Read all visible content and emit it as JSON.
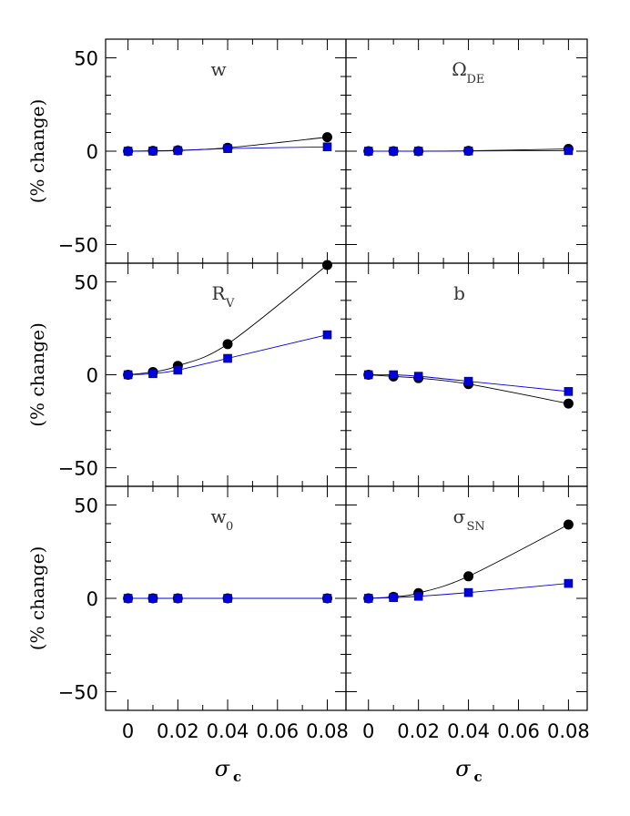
{
  "chart_data": {
    "type": "line",
    "layout": "3x2 grid, shared axes",
    "ylabel": "(% change)",
    "xlabel": "σ",
    "xlabel_sub": "c",
    "xlim": [
      -0.009,
      0.0875
    ],
    "ylim": [
      -60,
      60
    ],
    "xticks_major": [
      0,
      0.02,
      0.04,
      0.06,
      0.08
    ],
    "xtick_labels": [
      "0",
      "0.02",
      "0.04",
      "0.06",
      "0.08"
    ],
    "xticks_minor": [
      0.01,
      0.03,
      0.05,
      0.07
    ],
    "yticks_major": [
      -50,
      0,
      50
    ],
    "ytick_labels": [
      "−50",
      "0",
      "50"
    ],
    "yticks_minor": [
      -40,
      -30,
      -20,
      -10,
      10,
      20,
      30,
      40
    ],
    "x": [
      0,
      0.01,
      0.02,
      0.04,
      0.08
    ],
    "series_styles": [
      {
        "marker": "circle",
        "color": "#000000"
      },
      {
        "marker": "square",
        "color": "#0000dd"
      }
    ],
    "panels": [
      {
        "label": "w",
        "sub": "",
        "series": [
          {
            "values": [
              0,
              0.2,
              0.5,
              1.8,
              7.5
            ]
          },
          {
            "values": [
              0,
              0.1,
              0.3,
              1.4,
              2.3
            ]
          }
        ]
      },
      {
        "label": "Ω",
        "sub": "DE",
        "series": [
          {
            "values": [
              0,
              0,
              0,
              0.2,
              1.2
            ]
          },
          {
            "values": [
              0,
              0,
              0,
              0.1,
              0.3
            ]
          }
        ]
      },
      {
        "label": "R",
        "sub": "V",
        "series": [
          {
            "values": [
              0,
              1.5,
              4.8,
              16.5,
              59
            ]
          },
          {
            "values": [
              0,
              0.6,
              2.5,
              8.8,
              21.5
            ]
          }
        ]
      },
      {
        "label": "b",
        "sub": "",
        "series": [
          {
            "values": [
              0,
              -0.9,
              -1.8,
              -5,
              -15.5
            ]
          },
          {
            "values": [
              0,
              0,
              -0.8,
              -3.5,
              -9
            ]
          }
        ]
      },
      {
        "label": "w",
        "sub": "0",
        "series": [
          {
            "values": [
              0,
              0,
              0,
              0,
              0
            ]
          },
          {
            "values": [
              0,
              0,
              0,
              0,
              0
            ]
          }
        ]
      },
      {
        "label": "σ",
        "sub": "SN",
        "series": [
          {
            "values": [
              0,
              0.8,
              2.8,
              11.8,
              39.5
            ]
          },
          {
            "values": [
              0,
              0.4,
              1.1,
              3.1,
              8
            ]
          }
        ]
      }
    ]
  }
}
